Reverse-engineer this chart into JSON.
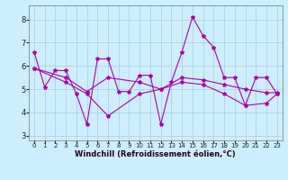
{
  "background_color": "#cceeff",
  "grid_color": "#aaccdd",
  "line_color": "#aa00aa",
  "xlabel": "Windchill (Refroidissement éolien,°C)",
  "ylim": [
    2.8,
    8.6
  ],
  "xlim": [
    -0.5,
    23.5
  ],
  "yticks": [
    3,
    4,
    5,
    6,
    7,
    8
  ],
  "xticks": [
    0,
    1,
    2,
    3,
    4,
    5,
    6,
    7,
    8,
    9,
    10,
    11,
    12,
    13,
    14,
    15,
    16,
    17,
    18,
    19,
    20,
    21,
    22,
    23
  ],
  "curve1_x": [
    0,
    1,
    2,
    3,
    4,
    5,
    6,
    7,
    8,
    9,
    10,
    11,
    12,
    13,
    14,
    15,
    16,
    17,
    18,
    19,
    20,
    21,
    22,
    23
  ],
  "curve1_y": [
    6.6,
    5.1,
    5.8,
    5.8,
    4.8,
    3.5,
    6.3,
    6.3,
    4.9,
    4.9,
    5.6,
    5.6,
    3.5,
    5.3,
    6.6,
    8.1,
    7.3,
    6.8,
    5.5,
    5.5,
    4.3,
    5.5,
    5.5,
    4.8
  ],
  "curve2_x": [
    0,
    3,
    5,
    7,
    10,
    12,
    14,
    16,
    18,
    20,
    22,
    23
  ],
  "curve2_y": [
    5.9,
    5.5,
    4.9,
    5.5,
    5.3,
    5.0,
    5.5,
    5.4,
    5.2,
    5.0,
    4.85,
    4.85
  ],
  "curve3_x": [
    0,
    3,
    5,
    7,
    10,
    12,
    14,
    16,
    18,
    20,
    22,
    23
  ],
  "curve3_y": [
    5.9,
    5.3,
    4.8,
    3.85,
    4.8,
    5.0,
    5.3,
    5.2,
    4.8,
    4.3,
    4.4,
    4.8
  ],
  "xlabel_fontsize": 6.0,
  "tick_fontsize": 5.0,
  "linewidth": 0.8,
  "markersize": 3.0
}
